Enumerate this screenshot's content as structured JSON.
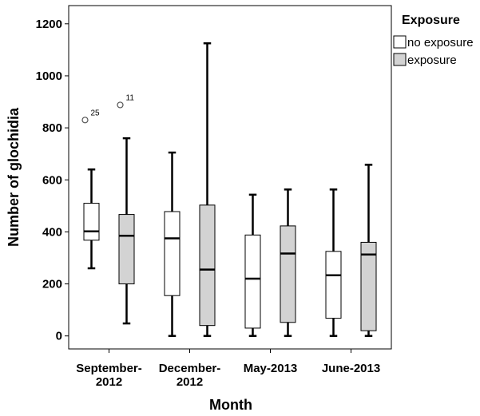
{
  "chart_data": {
    "type": "box",
    "xlabel": "Month",
    "ylabel": "Number of glochidia",
    "ylim": [
      -50,
      1270
    ],
    "yticks": [
      0,
      200,
      400,
      600,
      800,
      1000,
      1200
    ],
    "categories": [
      [
        "September-",
        "2012"
      ],
      [
        "December-",
        "2012"
      ],
      [
        "May-2013"
      ],
      [
        "June-2013"
      ]
    ],
    "legend": {
      "title": "Exposure",
      "position": "right",
      "entries": [
        {
          "label": "no exposure",
          "color": "#ffffff"
        },
        {
          "label": "exposure",
          "color": "#d3d3d3"
        }
      ]
    },
    "series": [
      {
        "name": "no exposure",
        "color": "#ffffff",
        "boxes": [
          {
            "min": 260,
            "q1": 368,
            "median": 402,
            "q3": 510,
            "max": 640,
            "outliers": [
              {
                "value": 830,
                "label": "25"
              }
            ]
          },
          {
            "min": 0,
            "q1": 155,
            "median": 375,
            "q3": 478,
            "max": 705,
            "outliers": []
          },
          {
            "min": 0,
            "q1": 30,
            "median": 220,
            "q3": 388,
            "max": 543,
            "outliers": []
          },
          {
            "min": 0,
            "q1": 68,
            "median": 233,
            "q3": 325,
            "max": 563,
            "outliers": []
          }
        ]
      },
      {
        "name": "exposure",
        "color": "#d3d3d3",
        "boxes": [
          {
            "min": 48,
            "q1": 200,
            "median": 385,
            "q3": 467,
            "max": 760,
            "outliers": [
              {
                "value": 888,
                "label": "11"
              }
            ]
          },
          {
            "min": 0,
            "q1": 40,
            "median": 255,
            "q3": 503,
            "max": 1125,
            "outliers": []
          },
          {
            "min": 0,
            "q1": 52,
            "median": 317,
            "q3": 423,
            "max": 563,
            "outliers": []
          },
          {
            "min": 0,
            "q1": 20,
            "median": 313,
            "q3": 360,
            "max": 658,
            "outliers": []
          }
        ]
      }
    ]
  }
}
